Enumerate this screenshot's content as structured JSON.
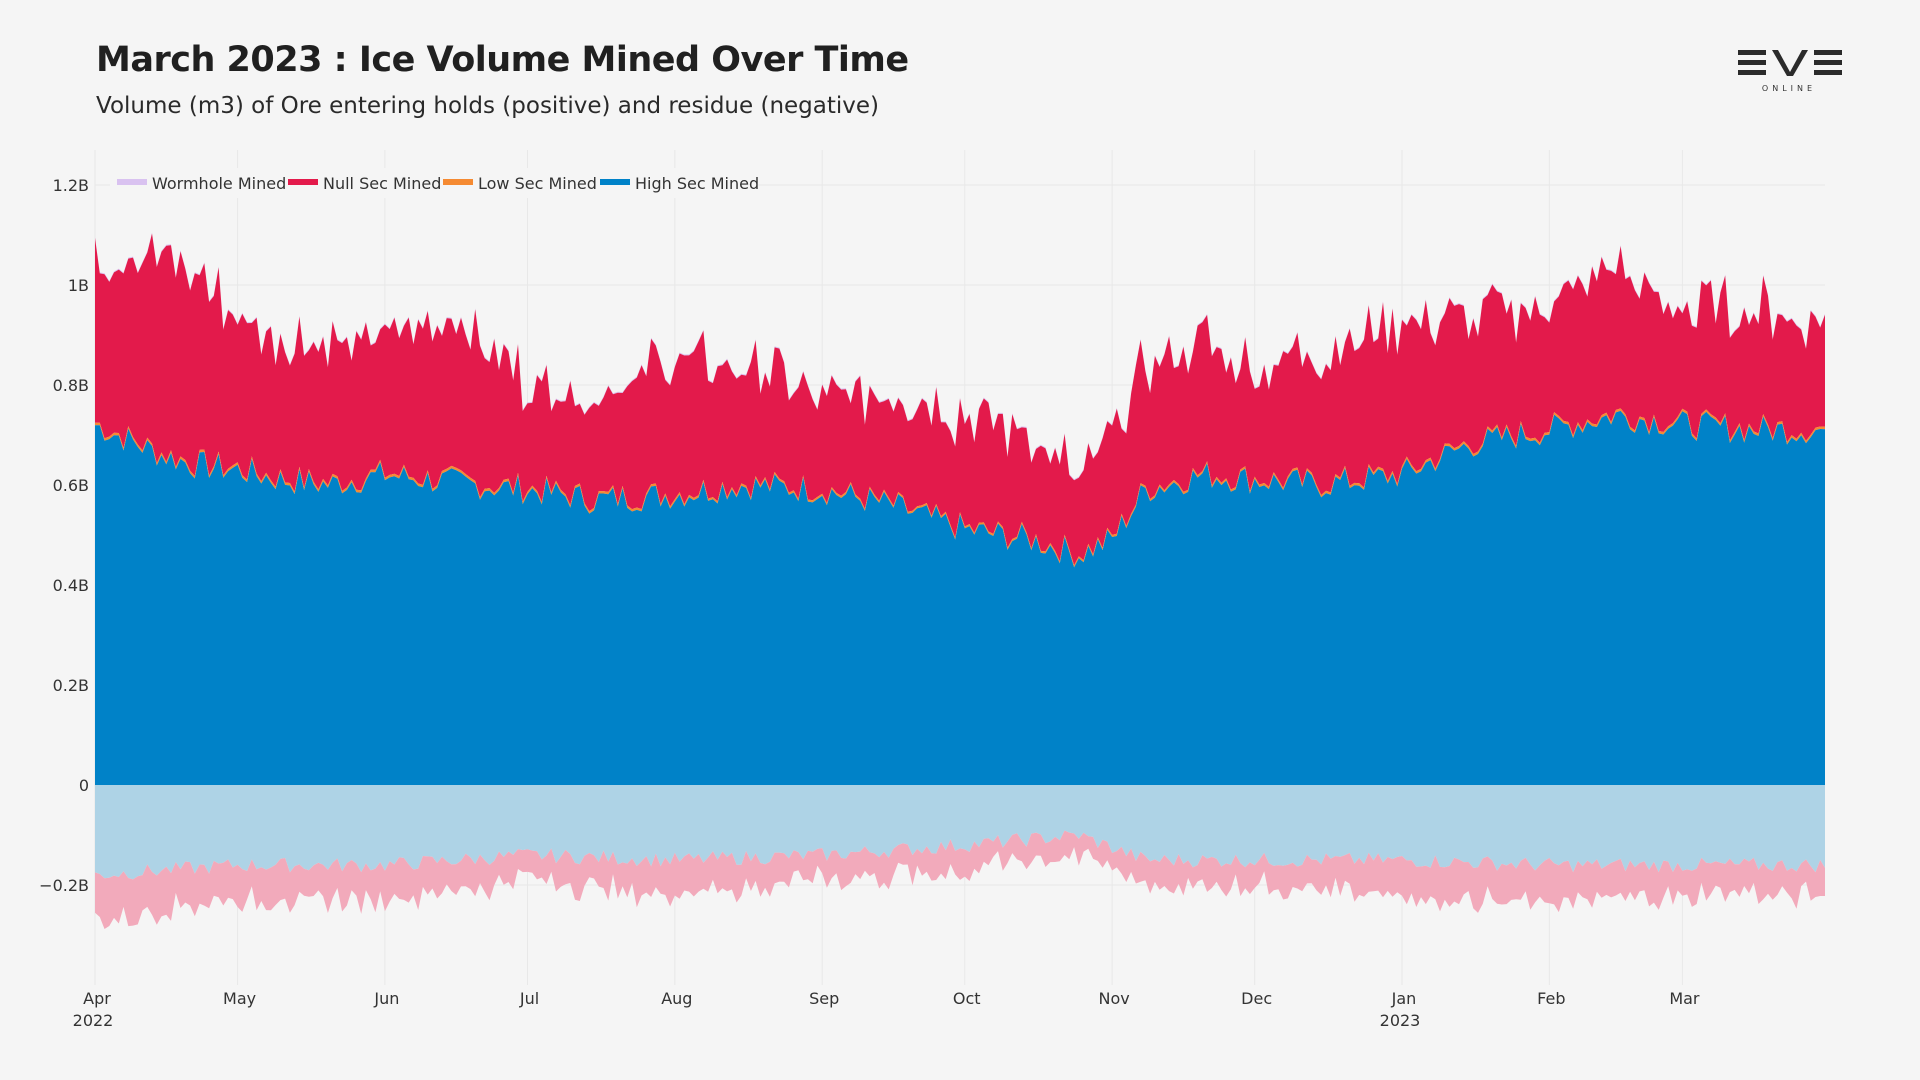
{
  "header": {
    "title": "March 2023 : Ice Volume Mined Over Time",
    "subtitle": "Volume (m3) of Ore entering holds (positive) and residue (negative)"
  },
  "logo": {
    "main": "EVE",
    "sub": "ONLINE",
    "icon": "eve-online-logo"
  },
  "chart_data": {
    "type": "area",
    "stacked": true,
    "x_range": [
      "2022-04-01",
      "2023-03-31"
    ],
    "ylim": [
      -0.4,
      1.25
    ],
    "y_unit": "B",
    "yticks": [
      {
        "value": 1.2,
        "label": "1.2B"
      },
      {
        "value": 1.0,
        "label": "1B"
      },
      {
        "value": 0.8,
        "label": "0.8B"
      },
      {
        "value": 0.6,
        "label": "0.6B"
      },
      {
        "value": 0.4,
        "label": "0.4B"
      },
      {
        "value": 0.2,
        "label": "0.2B"
      },
      {
        "value": 0.0,
        "label": "0"
      },
      {
        "value": -0.2,
        "label": "−0.2B"
      }
    ],
    "xticks": [
      {
        "date": "2022-04-01",
        "label": "Apr",
        "sub": "2022"
      },
      {
        "date": "2022-05-01",
        "label": "May",
        "sub": ""
      },
      {
        "date": "2022-06-01",
        "label": "Jun",
        "sub": ""
      },
      {
        "date": "2022-07-01",
        "label": "Jul",
        "sub": ""
      },
      {
        "date": "2022-08-01",
        "label": "Aug",
        "sub": ""
      },
      {
        "date": "2022-09-01",
        "label": "Sep",
        "sub": ""
      },
      {
        "date": "2022-10-01",
        "label": "Oct",
        "sub": ""
      },
      {
        "date": "2022-11-01",
        "label": "Nov",
        "sub": ""
      },
      {
        "date": "2022-12-01",
        "label": "Dec",
        "sub": ""
      },
      {
        "date": "2023-01-01",
        "label": "Jan",
        "sub": "2023"
      },
      {
        "date": "2023-02-01",
        "label": "Feb",
        "sub": ""
      },
      {
        "date": "2023-03-01",
        "label": "Mar",
        "sub": ""
      }
    ],
    "grid": true,
    "legend": {
      "placement": "top-left",
      "entries": [
        {
          "name": "Wormhole Mined",
          "color": "#d9c2f0"
        },
        {
          "name": "Null Sec Mined",
          "color": "#e31a4b"
        },
        {
          "name": "Low Sec Mined",
          "color": "#f58a32"
        },
        {
          "name": "High Sec Mined",
          "color": "#0082c8"
        }
      ]
    },
    "series": [
      {
        "name": "High Sec Mined",
        "color": "#0082c8",
        "points": [
          [
            "2022-04-01",
            0.72
          ],
          [
            "2022-04-08",
            0.69
          ],
          [
            "2022-04-15",
            0.66
          ],
          [
            "2022-04-22",
            0.64
          ],
          [
            "2022-05-01",
            0.63
          ],
          [
            "2022-05-10",
            0.61
          ],
          [
            "2022-05-20",
            0.6
          ],
          [
            "2022-06-01",
            0.62
          ],
          [
            "2022-06-10",
            0.61
          ],
          [
            "2022-06-20",
            0.6
          ],
          [
            "2022-07-01",
            0.59
          ],
          [
            "2022-07-15",
            0.57
          ],
          [
            "2022-08-01",
            0.58
          ],
          [
            "2022-08-15",
            0.6
          ],
          [
            "2022-09-01",
            0.59
          ],
          [
            "2022-09-15",
            0.56
          ],
          [
            "2022-10-01",
            0.51
          ],
          [
            "2022-10-15",
            0.49
          ],
          [
            "2022-10-25",
            0.46
          ],
          [
            "2022-11-01",
            0.49
          ],
          [
            "2022-11-08",
            0.59
          ],
          [
            "2022-11-20",
            0.62
          ],
          [
            "2022-12-01",
            0.61
          ],
          [
            "2022-12-15",
            0.6
          ],
          [
            "2023-01-01",
            0.62
          ],
          [
            "2023-01-15",
            0.68
          ],
          [
            "2023-02-01",
            0.71
          ],
          [
            "2023-02-15",
            0.74
          ],
          [
            "2023-03-01",
            0.72
          ],
          [
            "2023-03-15",
            0.71
          ],
          [
            "2023-03-31",
            0.71
          ]
        ]
      },
      {
        "name": "Low Sec Mined",
        "color": "#f58a32",
        "points": [
          [
            "2022-04-01",
            0.005
          ],
          [
            "2022-07-01",
            0.005
          ],
          [
            "2022-10-01",
            0.004
          ],
          [
            "2023-01-01",
            0.005
          ],
          [
            "2023-03-31",
            0.005
          ]
        ]
      },
      {
        "name": "Null Sec Mined",
        "color": "#e31a4b",
        "points": [
          [
            "2022-04-01",
            0.33
          ],
          [
            "2022-04-08",
            0.37
          ],
          [
            "2022-04-15",
            0.4
          ],
          [
            "2022-04-22",
            0.38
          ],
          [
            "2022-05-01",
            0.3
          ],
          [
            "2022-05-10",
            0.28
          ],
          [
            "2022-05-20",
            0.28
          ],
          [
            "2022-06-01",
            0.27
          ],
          [
            "2022-06-10",
            0.31
          ],
          [
            "2022-06-20",
            0.3
          ],
          [
            "2022-07-01",
            0.21
          ],
          [
            "2022-07-15",
            0.2
          ],
          [
            "2022-08-01",
            0.28
          ],
          [
            "2022-08-15",
            0.24
          ],
          [
            "2022-09-01",
            0.19
          ],
          [
            "2022-09-15",
            0.21
          ],
          [
            "2022-10-01",
            0.22
          ],
          [
            "2022-10-15",
            0.21
          ],
          [
            "2022-10-25",
            0.15
          ],
          [
            "2022-11-01",
            0.2
          ],
          [
            "2022-11-08",
            0.25
          ],
          [
            "2022-11-20",
            0.27
          ],
          [
            "2022-12-01",
            0.22
          ],
          [
            "2022-12-15",
            0.26
          ],
          [
            "2023-01-01",
            0.3
          ],
          [
            "2023-01-15",
            0.25
          ],
          [
            "2023-02-01",
            0.25
          ],
          [
            "2023-02-15",
            0.3
          ],
          [
            "2023-03-01",
            0.22
          ],
          [
            "2023-03-15",
            0.24
          ],
          [
            "2023-03-31",
            0.22
          ]
        ]
      },
      {
        "name": "Wormhole Mined",
        "color": "#d9c2f0",
        "points": [
          [
            "2022-04-01",
            0.002
          ],
          [
            "2022-10-01",
            0.002
          ],
          [
            "2023-03-31",
            0.002
          ]
        ]
      },
      {
        "name": "High Sec Residue",
        "color": "#aed3e6",
        "points": [
          [
            "2022-04-01",
            -0.18
          ],
          [
            "2022-05-01",
            -0.16
          ],
          [
            "2022-06-01",
            -0.16
          ],
          [
            "2022-07-01",
            -0.14
          ],
          [
            "2022-08-01",
            -0.15
          ],
          [
            "2022-09-01",
            -0.14
          ],
          [
            "2022-10-01",
            -0.12
          ],
          [
            "2022-10-25",
            -0.1
          ],
          [
            "2022-11-08",
            -0.15
          ],
          [
            "2022-12-01",
            -0.15
          ],
          [
            "2023-01-01",
            -0.15
          ],
          [
            "2023-02-01",
            -0.16
          ],
          [
            "2023-03-01",
            -0.16
          ],
          [
            "2023-03-31",
            -0.16
          ]
        ]
      },
      {
        "name": "Null Sec Residue",
        "color": "#f2aabb",
        "points": [
          [
            "2022-04-01",
            -0.09
          ],
          [
            "2022-05-01",
            -0.07
          ],
          [
            "2022-06-01",
            -0.07
          ],
          [
            "2022-07-01",
            -0.05
          ],
          [
            "2022-08-01",
            -0.07
          ],
          [
            "2022-09-01",
            -0.05
          ],
          [
            "2022-10-01",
            -0.05
          ],
          [
            "2022-10-25",
            -0.04
          ],
          [
            "2022-11-08",
            -0.05
          ],
          [
            "2022-12-01",
            -0.05
          ],
          [
            "2023-01-01",
            -0.07
          ],
          [
            "2023-02-01",
            -0.08
          ],
          [
            "2023-03-01",
            -0.06
          ],
          [
            "2023-03-31",
            -0.06
          ]
        ]
      }
    ]
  }
}
